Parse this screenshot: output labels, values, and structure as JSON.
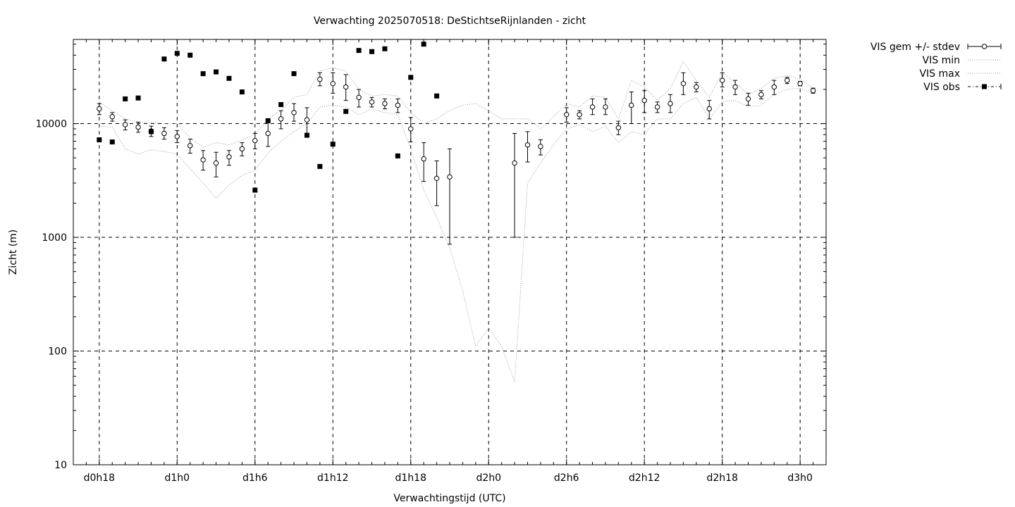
{
  "chart_data": {
    "type": "line",
    "title": "Verwachting 2025070518: DeStichtseRijnlanden - zicht",
    "xlabel": "Verwachtingstijd (UTC)",
    "ylabel": "Zicht (m)",
    "yscale": "log",
    "ylim": [
      10,
      55000
    ],
    "xlim": [
      -2,
      56
    ],
    "xticks": [
      {
        "x": 0,
        "label": "d0h18"
      },
      {
        "x": 6,
        "label": "d1h0"
      },
      {
        "x": 12,
        "label": "d1h6"
      },
      {
        "x": 18,
        "label": "d1h12"
      },
      {
        "x": 24,
        "label": "d1h18"
      },
      {
        "x": 30,
        "label": "d2h0"
      },
      {
        "x": 36,
        "label": "d2h6"
      },
      {
        "x": 42,
        "label": "d2h12"
      },
      {
        "x": 48,
        "label": "d2h18"
      },
      {
        "x": 54,
        "label": "d3h0"
      }
    ],
    "yticks": [
      {
        "y": 10,
        "label": "10"
      },
      {
        "y": 100,
        "label": "100"
      },
      {
        "y": 1000,
        "label": "1000"
      },
      {
        "y": 10000,
        "label": "10000"
      }
    ],
    "grid": true,
    "legend_position": "outside-top-right",
    "series": [
      {
        "name": "VIS gem +/- stdev",
        "style": "errorbars",
        "points": [
          [
            0,
            13500,
            12000,
            15000
          ],
          [
            1,
            11500,
            10500,
            12500
          ],
          [
            2,
            9800,
            8800,
            10800
          ],
          [
            3,
            9300,
            8400,
            10300
          ],
          [
            4,
            8600,
            7700,
            9500
          ],
          [
            5,
            8200,
            7300,
            9200
          ],
          [
            6,
            7700,
            6800,
            8700
          ],
          [
            7,
            6400,
            5500,
            7300
          ],
          [
            8,
            4800,
            3900,
            5800
          ],
          [
            9,
            4500,
            3400,
            5600
          ],
          [
            10,
            5100,
            4300,
            5800
          ],
          [
            11,
            6000,
            5200,
            6800
          ],
          [
            12,
            7100,
            6000,
            8200
          ],
          [
            13,
            8200,
            6300,
            10200
          ],
          [
            14,
            11000,
            9000,
            13000
          ],
          [
            15,
            12500,
            10500,
            15000
          ],
          [
            16,
            10800,
            7800,
            13800
          ],
          [
            17,
            24500,
            21500,
            28000
          ],
          [
            18,
            22500,
            18500,
            28000
          ],
          [
            19,
            21000,
            16000,
            27000
          ],
          [
            20,
            17000,
            14000,
            20000
          ],
          [
            21,
            15500,
            14000,
            17000
          ],
          [
            22,
            15000,
            13500,
            16500
          ],
          [
            23,
            14500,
            12500,
            16500
          ],
          [
            24,
            9000,
            6900,
            11300
          ],
          [
            25,
            4900,
            3100,
            6800
          ],
          [
            26,
            3300,
            1900,
            4700
          ],
          [
            27,
            3400,
            870,
            6000
          ],
          [
            32,
            4500,
            1000,
            8200
          ],
          [
            33,
            6500,
            4600,
            8500
          ],
          [
            34,
            6300,
            5300,
            7200
          ],
          [
            36,
            12000,
            10300,
            13800
          ],
          [
            37,
            12000,
            11000,
            13000
          ],
          [
            38,
            14000,
            12000,
            16500
          ],
          [
            39,
            14000,
            12000,
            16500
          ],
          [
            40,
            9200,
            8000,
            10500
          ],
          [
            41,
            14500,
            10000,
            19000
          ],
          [
            42,
            16000,
            12500,
            19500
          ],
          [
            43,
            14000,
            12500,
            15500
          ],
          [
            44,
            15000,
            12500,
            18000
          ],
          [
            45,
            22500,
            18000,
            28000
          ],
          [
            46,
            21000,
            19000,
            23000
          ],
          [
            47,
            13500,
            11000,
            16000
          ],
          [
            48,
            24000,
            21000,
            28000
          ],
          [
            49,
            21000,
            18000,
            24000
          ],
          [
            50,
            16500,
            14500,
            18500
          ],
          [
            51,
            18000,
            16500,
            19500
          ],
          [
            52,
            21000,
            18000,
            24000
          ],
          [
            53,
            24000,
            22500,
            25500
          ],
          [
            54,
            22500,
            21500,
            23500
          ],
          [
            55,
            19500,
            18500,
            20500
          ]
        ]
      },
      {
        "name": "VIS min",
        "style": "dotted",
        "points": [
          [
            0,
            9500
          ],
          [
            1,
            9300
          ],
          [
            2,
            6000
          ],
          [
            3,
            5400
          ],
          [
            4,
            5900
          ],
          [
            5,
            5700
          ],
          [
            6,
            5400
          ],
          [
            7,
            4000
          ],
          [
            8,
            3000
          ],
          [
            9,
            2200
          ],
          [
            10,
            2900
          ],
          [
            11,
            3500
          ],
          [
            12,
            3900
          ],
          [
            13,
            5500
          ],
          [
            14,
            7000
          ],
          [
            15,
            8500
          ],
          [
            16,
            10000
          ],
          [
            17,
            14000
          ],
          [
            18,
            14500
          ],
          [
            19,
            14000
          ],
          [
            20,
            12000
          ],
          [
            21,
            13500
          ],
          [
            22,
            12500
          ],
          [
            23,
            12000
          ],
          [
            24,
            6000
          ],
          [
            25,
            2600
          ],
          [
            26,
            1500
          ],
          [
            27,
            800
          ],
          [
            28,
            340
          ],
          [
            29,
            110
          ],
          [
            30,
            160
          ],
          [
            31,
            110
          ],
          [
            32,
            53
          ],
          [
            33,
            3000
          ],
          [
            34,
            4500
          ],
          [
            35,
            6500
          ],
          [
            36,
            9000
          ],
          [
            37,
            9800
          ],
          [
            38,
            8500
          ],
          [
            39,
            9500
          ],
          [
            40,
            6800
          ],
          [
            41,
            8500
          ],
          [
            42,
            8000
          ],
          [
            43,
            11000
          ],
          [
            44,
            11000
          ],
          [
            45,
            15000
          ],
          [
            46,
            17000
          ],
          [
            47,
            11000
          ],
          [
            48,
            15500
          ],
          [
            49,
            16000
          ],
          [
            50,
            14000
          ],
          [
            51,
            14500
          ],
          [
            52,
            18000
          ],
          [
            53,
            20000
          ],
          [
            54,
            20500
          ],
          [
            55,
            18500
          ]
        ]
      },
      {
        "name": "VIS max",
        "style": "dotted",
        "points": [
          [
            0,
            15500
          ],
          [
            1,
            13000
          ],
          [
            2,
            11000
          ],
          [
            3,
            10300
          ],
          [
            4,
            10300
          ],
          [
            5,
            10000
          ],
          [
            6,
            10000
          ],
          [
            7,
            7500
          ],
          [
            8,
            6200
          ],
          [
            9,
            6800
          ],
          [
            10,
            6500
          ],
          [
            11,
            7200
          ],
          [
            12,
            8000
          ],
          [
            13,
            11000
          ],
          [
            14,
            13000
          ],
          [
            15,
            17000
          ],
          [
            16,
            18000
          ],
          [
            17,
            29000
          ],
          [
            18,
            31000
          ],
          [
            19,
            29000
          ],
          [
            20,
            20000
          ],
          [
            21,
            17500
          ],
          [
            22,
            18000
          ],
          [
            23,
            17500
          ],
          [
            24,
            12500
          ],
          [
            25,
            10000
          ],
          [
            26,
            11000
          ],
          [
            27,
            13000
          ],
          [
            28,
            14500
          ],
          [
            29,
            15000
          ],
          [
            30,
            13000
          ],
          [
            31,
            11000
          ],
          [
            32,
            11000
          ],
          [
            33,
            11000
          ],
          [
            34,
            9000
          ],
          [
            35,
            11500
          ],
          [
            36,
            15000
          ],
          [
            37,
            14000
          ],
          [
            38,
            17500
          ],
          [
            39,
            17000
          ],
          [
            40,
            11000
          ],
          [
            41,
            24000
          ],
          [
            42,
            21000
          ],
          [
            43,
            16000
          ],
          [
            44,
            20500
          ],
          [
            45,
            35000
          ],
          [
            46,
            24000
          ],
          [
            47,
            17000
          ],
          [
            48,
            28000
          ],
          [
            49,
            23000
          ],
          [
            50,
            18000
          ],
          [
            51,
            20500
          ],
          [
            52,
            25000
          ],
          [
            53,
            26500
          ],
          [
            54,
            24500
          ],
          [
            55,
            20500
          ]
        ]
      },
      {
        "name": "VIS obs",
        "style": "filled-squares",
        "points": [
          [
            0,
            7200
          ],
          [
            1,
            6900
          ],
          [
            2,
            16500
          ],
          [
            3,
            16800
          ],
          [
            4,
            8500
          ],
          [
            5,
            37000
          ],
          [
            6,
            41500
          ],
          [
            7,
            40000
          ],
          [
            8,
            27500
          ],
          [
            9,
            28500
          ],
          [
            10,
            25000
          ],
          [
            11,
            19000
          ],
          [
            12,
            2600
          ],
          [
            13,
            10600
          ],
          [
            14,
            14700
          ],
          [
            15,
            27500
          ],
          [
            16,
            7900
          ],
          [
            17,
            4200
          ],
          [
            18,
            6600
          ],
          [
            19,
            12800
          ],
          [
            20,
            44000
          ],
          [
            21,
            43000
          ],
          [
            22,
            45500
          ],
          [
            23,
            5200
          ],
          [
            24,
            25500
          ],
          [
            25,
            50000
          ],
          [
            26,
            17500
          ]
        ]
      }
    ]
  }
}
